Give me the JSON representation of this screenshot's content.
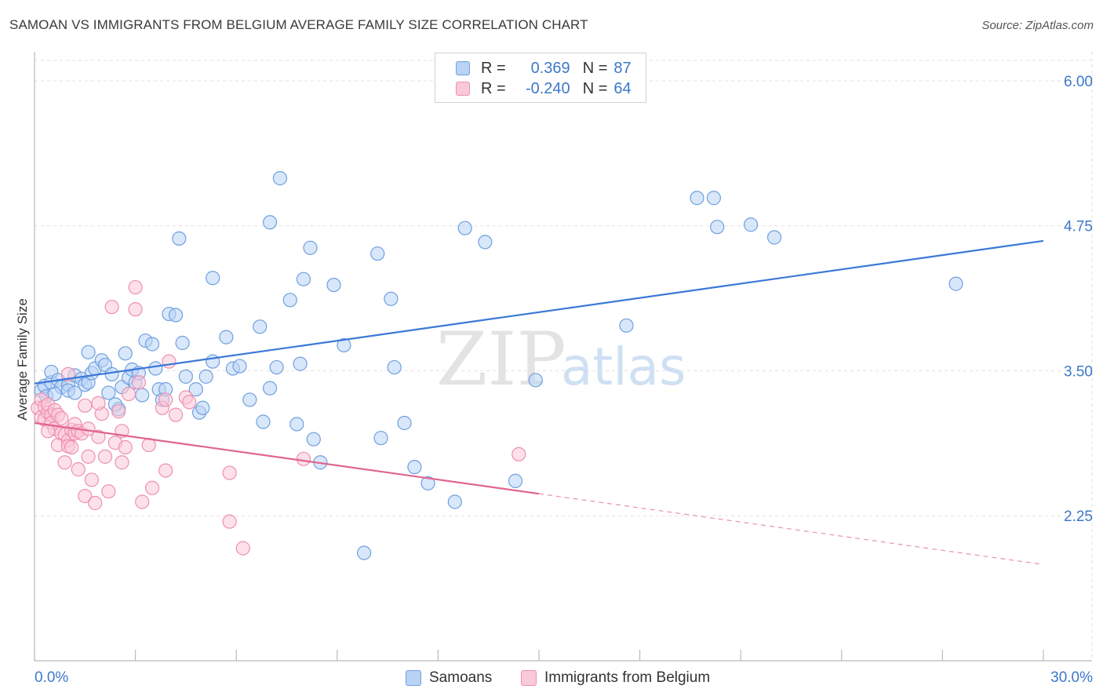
{
  "header": {
    "title": "SAMOAN VS IMMIGRANTS FROM BELGIUM AVERAGE FAMILY SIZE CORRELATION CHART",
    "source": "Source: ZipAtlas.com"
  },
  "watermark": {
    "zip": "ZIP",
    "atlas": "atlas"
  },
  "legend": {
    "rows": [
      {
        "r_label": "R =",
        "r_value": "0.369",
        "n_label": "N =",
        "n_value": "87",
        "color": "#6fa0e0",
        "fill": "#b9d3f5"
      },
      {
        "r_label": "R =",
        "r_value": "-0.240",
        "n_label": "N =",
        "n_value": "64",
        "color": "#ef8fb0",
        "fill": "#f9c9d9"
      }
    ]
  },
  "bottom_legend": [
    {
      "label": "Samoans",
      "color": "#6fa0e0",
      "fill": "#b9d3f5"
    },
    {
      "label": "Immigrants from Belgium",
      "color": "#ef8fb0",
      "fill": "#f9c9d9"
    }
  ],
  "chart_data": {
    "type": "scatter",
    "title": "SAMOAN VS IMMIGRANTS FROM BELGIUM AVERAGE FAMILY SIZE CORRELATION CHART",
    "xlabel": "",
    "ylabel": "Average Family Size",
    "xlim": [
      0,
      30
    ],
    "ylim": [
      1.0,
      6.25
    ],
    "x_tick_labels": [
      "0.0%",
      "30.0%"
    ],
    "y_ticks": [
      2.25,
      3.5,
      4.75,
      6.0
    ],
    "y_tick_labels": [
      "2.25",
      "3.50",
      "4.75",
      "6.00"
    ],
    "grid": true,
    "series": [
      {
        "name": "Samoans",
        "color": "#3b78d8",
        "fill": "#b9d3f5",
        "stroke": "#6fa0e0",
        "trend": {
          "x": [
            0.0,
            30.0
          ],
          "y": [
            3.39,
            4.62
          ]
        },
        "points": [
          [
            0.2,
            3.33
          ],
          [
            0.3,
            3.37
          ],
          [
            0.35,
            3.28
          ],
          [
            0.5,
            3.4
          ],
          [
            0.5,
            3.49
          ],
          [
            0.7,
            3.42
          ],
          [
            0.8,
            3.36
          ],
          [
            1.0,
            3.38
          ],
          [
            1.0,
            3.33
          ],
          [
            1.2,
            3.46
          ],
          [
            1.2,
            3.31
          ],
          [
            1.4,
            3.43
          ],
          [
            1.5,
            3.38
          ],
          [
            1.6,
            3.66
          ],
          [
            1.6,
            3.4
          ],
          [
            1.7,
            3.48
          ],
          [
            1.8,
            3.52
          ],
          [
            2.0,
            3.59
          ],
          [
            2.1,
            3.55
          ],
          [
            2.2,
            3.31
          ],
          [
            2.3,
            3.47
          ],
          [
            2.5,
            3.17
          ],
          [
            2.6,
            3.36
          ],
          [
            2.7,
            3.65
          ],
          [
            2.8,
            3.44
          ],
          [
            2.9,
            3.51
          ],
          [
            3.0,
            3.4
          ],
          [
            3.1,
            3.48
          ],
          [
            3.3,
            3.76
          ],
          [
            3.5,
            3.73
          ],
          [
            3.6,
            3.52
          ],
          [
            3.7,
            3.34
          ],
          [
            3.8,
            3.25
          ],
          [
            3.9,
            3.34
          ],
          [
            4.0,
            3.99
          ],
          [
            4.2,
            3.98
          ],
          [
            4.3,
            4.64
          ],
          [
            4.4,
            3.74
          ],
          [
            4.5,
            3.45
          ],
          [
            4.8,
            3.34
          ],
          [
            4.9,
            3.14
          ],
          [
            5.0,
            3.18
          ],
          [
            5.1,
            3.45
          ],
          [
            5.3,
            3.58
          ],
          [
            5.3,
            4.3
          ],
          [
            5.7,
            3.79
          ],
          [
            5.9,
            3.52
          ],
          [
            6.1,
            3.54
          ],
          [
            6.4,
            3.25
          ],
          [
            6.7,
            3.88
          ],
          [
            6.8,
            3.06
          ],
          [
            7.0,
            4.78
          ],
          [
            7.0,
            3.35
          ],
          [
            7.2,
            3.53
          ],
          [
            7.3,
            5.16
          ],
          [
            7.6,
            4.11
          ],
          [
            7.8,
            3.04
          ],
          [
            7.9,
            3.56
          ],
          [
            8.0,
            4.29
          ],
          [
            8.2,
            4.56
          ],
          [
            8.3,
            2.91
          ],
          [
            8.5,
            2.71
          ],
          [
            8.9,
            4.24
          ],
          [
            9.2,
            3.72
          ],
          [
            9.8,
            1.93
          ],
          [
            10.2,
            4.51
          ],
          [
            10.3,
            2.92
          ],
          [
            10.6,
            4.12
          ],
          [
            10.7,
            3.53
          ],
          [
            11.0,
            3.05
          ],
          [
            11.3,
            2.67
          ],
          [
            11.7,
            2.53
          ],
          [
            12.5,
            2.37
          ],
          [
            12.8,
            4.73
          ],
          [
            13.4,
            4.61
          ],
          [
            14.3,
            2.55
          ],
          [
            14.9,
            3.42
          ],
          [
            17.6,
            3.89
          ],
          [
            19.7,
            4.99
          ],
          [
            20.2,
            4.99
          ],
          [
            20.3,
            4.74
          ],
          [
            21.3,
            4.76
          ],
          [
            22.0,
            4.65
          ],
          [
            27.4,
            4.25
          ],
          [
            0.6,
            3.3
          ],
          [
            2.4,
            3.21
          ],
          [
            3.2,
            3.29
          ]
        ]
      },
      {
        "name": "Immigrants from Belgium",
        "color": "#e0648f",
        "fill": "#f9c9d9",
        "stroke": "#ef8fb0",
        "trend": {
          "x": [
            0.0,
            15.0
          ],
          "y": [
            3.05,
            2.44
          ]
        },
        "trend_dashed": {
          "x": [
            15.0,
            30.0
          ],
          "y": [
            2.44,
            1.83
          ]
        },
        "points": [
          [
            0.1,
            3.18
          ],
          [
            0.2,
            3.1
          ],
          [
            0.2,
            3.25
          ],
          [
            0.3,
            3.19
          ],
          [
            0.3,
            3.08
          ],
          [
            0.4,
            3.14
          ],
          [
            0.4,
            3.21
          ],
          [
            0.5,
            3.12
          ],
          [
            0.5,
            3.05
          ],
          [
            0.6,
            3.16
          ],
          [
            0.6,
            3.0
          ],
          [
            0.7,
            2.86
          ],
          [
            0.7,
            3.12
          ],
          [
            0.8,
            3.09
          ],
          [
            0.8,
            2.96
          ],
          [
            0.9,
            2.95
          ],
          [
            0.9,
            2.71
          ],
          [
            1.0,
            2.9
          ],
          [
            1.0,
            2.85
          ],
          [
            1.1,
            2.99
          ],
          [
            1.1,
            2.84
          ],
          [
            1.2,
            3.04
          ],
          [
            1.2,
            2.96
          ],
          [
            1.3,
            2.65
          ],
          [
            1.3,
            2.98
          ],
          [
            1.4,
            2.96
          ],
          [
            1.5,
            2.42
          ],
          [
            1.5,
            3.2
          ],
          [
            1.6,
            3.0
          ],
          [
            1.6,
            2.76
          ],
          [
            1.7,
            2.56
          ],
          [
            1.8,
            2.36
          ],
          [
            1.9,
            2.93
          ],
          [
            2.0,
            3.13
          ],
          [
            2.1,
            2.76
          ],
          [
            2.2,
            2.46
          ],
          [
            2.3,
            4.05
          ],
          [
            2.4,
            2.88
          ],
          [
            2.5,
            3.15
          ],
          [
            2.6,
            2.71
          ],
          [
            2.7,
            2.84
          ],
          [
            2.8,
            3.3
          ],
          [
            3.0,
            4.03
          ],
          [
            3.0,
            4.22
          ],
          [
            3.1,
            3.4
          ],
          [
            3.2,
            2.37
          ],
          [
            3.4,
            2.86
          ],
          [
            3.5,
            2.49
          ],
          [
            3.8,
            3.18
          ],
          [
            3.9,
            3.25
          ],
          [
            4.0,
            3.58
          ],
          [
            3.9,
            2.64
          ],
          [
            4.5,
            3.27
          ],
          [
            4.6,
            3.23
          ],
          [
            5.8,
            2.62
          ],
          [
            5.8,
            2.2
          ],
          [
            6.2,
            1.97
          ],
          [
            8.0,
            2.74
          ],
          [
            14.4,
            2.78
          ],
          [
            0.4,
            2.98
          ],
          [
            1.0,
            3.47
          ],
          [
            1.9,
            3.22
          ],
          [
            2.6,
            2.98
          ],
          [
            4.2,
            3.12
          ]
        ]
      }
    ]
  }
}
